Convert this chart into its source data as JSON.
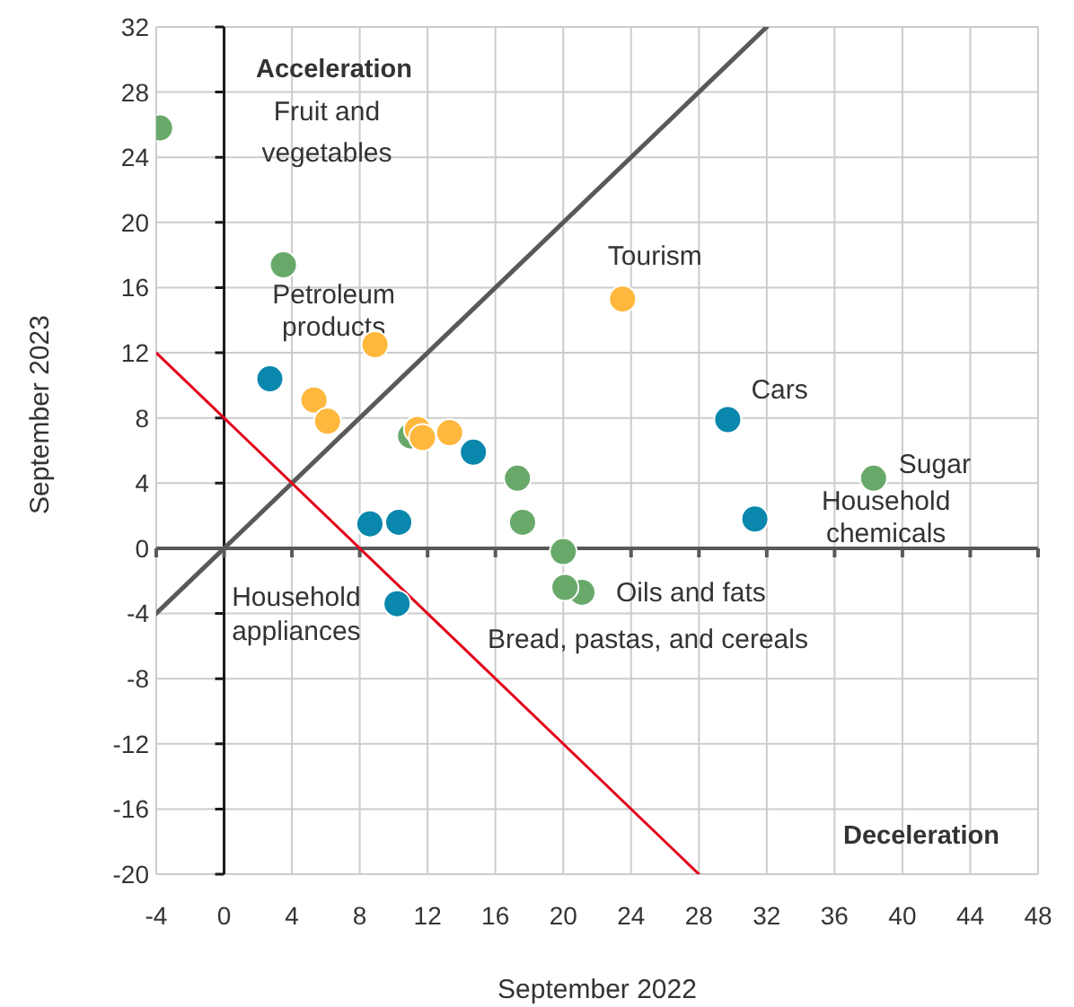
{
  "chart_data": {
    "type": "scatter",
    "xlabel": "September 2022",
    "ylabel": "September 2023",
    "xlim": [
      -4,
      48
    ],
    "xticks": [
      -4,
      0,
      4,
      8,
      12,
      16,
      20,
      24,
      28,
      32,
      36,
      40,
      44,
      48
    ],
    "ylim": [
      -20,
      32
    ],
    "yticks": [
      -20,
      -16,
      -12,
      -8,
      -4,
      0,
      4,
      8,
      12,
      16,
      20,
      24,
      28,
      32
    ],
    "grid": true,
    "marker": "circle",
    "series": [
      {
        "type": "line",
        "marker": "none",
        "color": "#595959",
        "x": [
          -4,
          32
        ],
        "values": [
          -4,
          32
        ]
      },
      {
        "type": "line",
        "marker": "none",
        "color": "#e3001b",
        "x": [
          -4,
          28
        ],
        "values": [
          12,
          -20
        ]
      },
      {
        "color": "#68a96a",
        "x": [
          -3.8,
          3.5,
          11.0,
          17.3,
          17.6,
          20.0,
          21.1,
          20.1,
          38.3
        ],
        "values": [
          25.8,
          17.4,
          6.9,
          4.3,
          1.6,
          -0.2,
          -2.7,
          -2.4,
          4.3
        ]
      },
      {
        "color": "#ffb83d",
        "x": [
          8.9,
          5.3,
          6.1,
          11.4,
          11.7,
          13.3,
          23.5
        ],
        "values": [
          12.5,
          9.1,
          7.8,
          7.3,
          6.8,
          7.1,
          15.3
        ]
      },
      {
        "color": "#0a87ad",
        "x": [
          2.7,
          14.7,
          29.7,
          31.3,
          8.6,
          10.3,
          10.2
        ],
        "values": [
          10.4,
          5.9,
          7.9,
          1.8,
          1.5,
          1.6,
          -3.4
        ]
      }
    ],
    "annotations": [
      "Acceleration",
      "Deceleration",
      "Fruit and vegetables",
      {
        "text": "Petroleum products",
        "x": 8.9,
        "y": 12.5
      },
      {
        "text": "Tourism",
        "x": 23.5,
        "y": 15.3
      },
      {
        "text": "Cars",
        "x": 29.7,
        "y": 7.9
      },
      {
        "text": "Sugar",
        "x": 38.3,
        "y": 4.3
      },
      {
        "text": "Household chemicals",
        "x": 31.3,
        "y": 1.8
      },
      {
        "text": "Household appliances",
        "x": 10.2,
        "y": -3.4
      },
      {
        "text": "Oils and fats",
        "x": 21.1,
        "y": -2.7
      },
      {
        "text": "Bread, pastas, and cereals",
        "x": 20.1,
        "y": -2.4
      }
    ]
  }
}
